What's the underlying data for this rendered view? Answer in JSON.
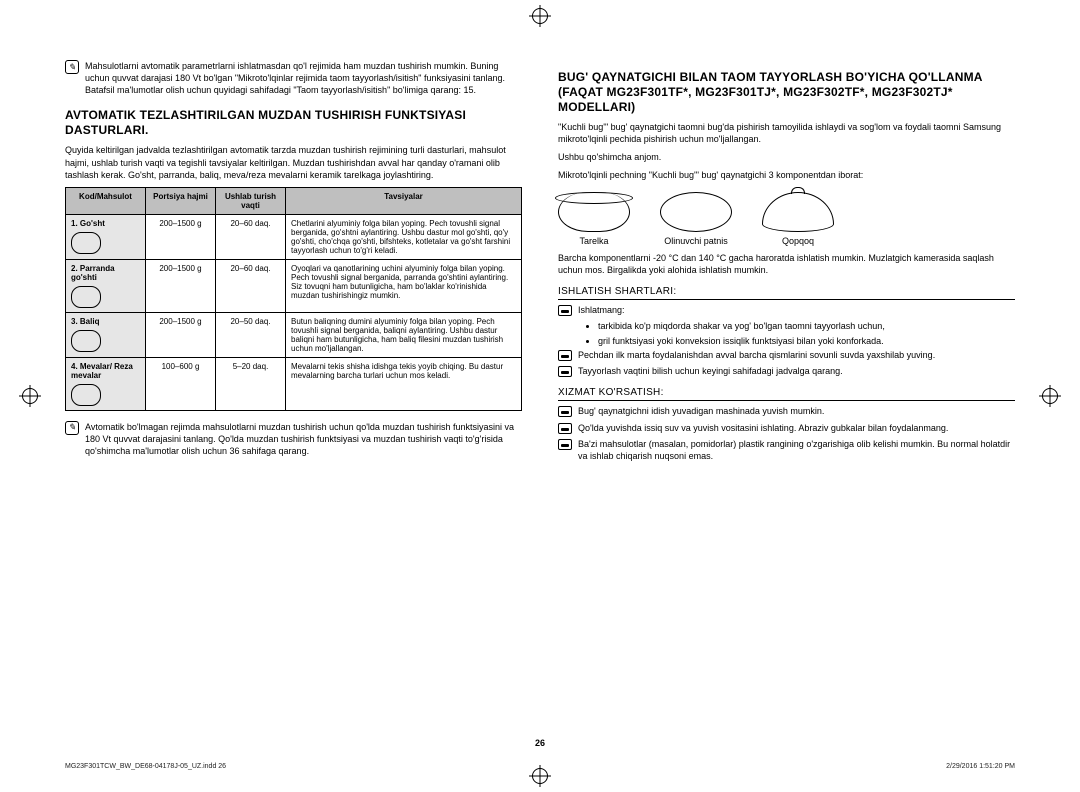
{
  "reg_marks": true,
  "left": {
    "top_note": "Mahsulotlarni avtomatik parametrlarni ishlatmasdan qo'l rejimida ham muzdan tushirish mumkin. Buning uchun quvvat darajasi 180 Vt bo'lgan \"Mikroto'lqinlar rejimida taom tayyorlash/isitish\" funksiyasini tanlang. Batafsil ma'lumotlar olish uchun quyidagi sahifadagi \"Taom tayyorlash/isitish\" bo'limiga qarang: 15.",
    "heading": "AVTOMATIK TEZLASHTIRILGAN MUZDAN TUSHIRISH FUNKTSIYASI DASTURLARI.",
    "intro": "Quyida keltirilgan jadvalda tezlashtirilgan avtomatik tarzda muzdan tushirish rejimining turli dasturlari, mahsulot hajmi, ushlab turish vaqti va tegishli tavsiyalar keltirilgan. Muzdan tushirishdan avval har qanday o'ramani olib tashlash kerak. Go'sht, parranda, baliq, meva/reza mevalarni keramik tarelkaga joylashtiring.",
    "table": {
      "headers": [
        "Kod/Mahsulot",
        "Portsiya hajmi",
        "Ushlab turish vaqti",
        "Tavsiyalar"
      ],
      "rows": [
        {
          "code": "1. Go'sht",
          "portion": "200–1500 g",
          "time": "20–60 daq.",
          "tip": "Chetlarini alyuminiy folga bilan yoping. Pech tovushli signal berganida, go'shtni aylantiring. Ushbu dastur mol go'shti, qo'y go'shti, cho'chqa go'shti, bifshteks, kotletalar va go'sht farshini tayyorlash uchun to'g'ri keladi."
        },
        {
          "code": "2. Parranda go'shti",
          "portion": "200–1500 g",
          "time": "20–60 daq.",
          "tip": "Oyoqlari va qanotlarining uchini alyuminiy folga bilan yoping. Pech tovushli signal berganida, parranda go'shtini aylantiring. Siz tovuqni ham butunligicha, ham bo'laklar ko'rinishida muzdan tushirishingiz mumkin."
        },
        {
          "code": "3. Baliq",
          "portion": "200–1500 g",
          "time": "20–50 daq.",
          "tip": "Butun baliqning dumini alyuminiy folga bilan yoping. Pech tovushli signal berganida, baliqni aylantiring. Ushbu dastur baliqni ham butunligicha, ham baliq filesini muzdan tushirish uchun mo'ljallangan."
        },
        {
          "code": "4. Mevalar/ Reza mevalar",
          "portion": "100–600 g",
          "time": "5–20 daq.",
          "tip": "Mevalarni tekis shisha idishga tekis yoyib chiqing. Bu dastur mevalarning barcha turlari uchun mos keladi."
        }
      ]
    },
    "bottom_note": "Avtomatik bo'lmagan rejimda mahsulotlarni muzdan tushirish uchun qo'lda muzdan tushirish funktsiyasini va 180 Vt quvvat darajasini tanlang. Qo'lda muzdan tushirish funktsiyasi va muzdan tushirish vaqti to'g'risida qo'shimcha ma'lumotlar olish uchun  36 sahifaga qarang."
  },
  "right": {
    "heading": "BUG' QAYNATGICHI BILAN TAOM TAYYORLASH BO'YICHA QO'LLANMA (FAQAT MG23F301TF*, MG23F301TJ*, MG23F302TF*, MG23F302TJ* MODELLARI)",
    "p1": "\"Kuchli bug'\" bug' qaynatgichi taomni bug'da pishirish tamoyilida ishlaydi va sog'lom va foydali taomni Samsung mikroto'lqinli pechida pishirish uchun mo'ljallangan.",
    "p2": "Ushbu qo'shimcha anjom.",
    "p3": "Mikroto'lqinli pechning \"Kuchli bug'\" bug' qaynatgichi 3 komponentdan iborat:",
    "components": [
      {
        "label": "Tarelka"
      },
      {
        "label": "Olinuvchi patnis"
      },
      {
        "label": "Qopqoq"
      }
    ],
    "p4": "Barcha komponentlarni -20 °C dan 140 °C gacha haroratda ishlatish mumkin. Muzlatgich kamerasida saqlash uchun mos. Birgalikda yoki alohida ishlatish mumkin.",
    "sec1_title": "ISHLATISH SHARTLARI:",
    "sec1_lead": "Ishlatmang:",
    "sec1_items": [
      "tarkibida ko'p miqdorda shakar va yog' bo'lgan taomni tayyorlash uchun,",
      "gril funktsiyasi yoki konveksion issiqlik funktsiyasi bilan yoki konforkada."
    ],
    "sec1_b2": "Pechdan ilk marta foydalanishdan avval barcha qismlarini sovunli suvda yaxshilab yuving.",
    "sec1_b3": "Tayyorlash vaqtini bilish uchun keyingi sahifadagi jadvalga qarang.",
    "sec2_title": "XIZMAT KO'RSATISH:",
    "sec2_b1": "Bug' qaynatgichni idish yuvadigan mashinada yuvish mumkin.",
    "sec2_b2": "Qo'lda yuvishda issiq suv va yuvish vositasini ishlating. Abraziv gubkalar bilan foydalanmang.",
    "sec2_b3": "Ba'zi mahsulotlar (masalan, pomidorlar) plastik rangining o'zgarishiga olib kelishi mumkin. Bu normal holatdir va ishlab chiqarish nuqsoni emas."
  },
  "page_number": "26",
  "footer_left": "MG23F301TCW_BW_DE68-04178J-05_UZ.indd   26",
  "footer_right": "2/29/2016   1:51:20 PM"
}
